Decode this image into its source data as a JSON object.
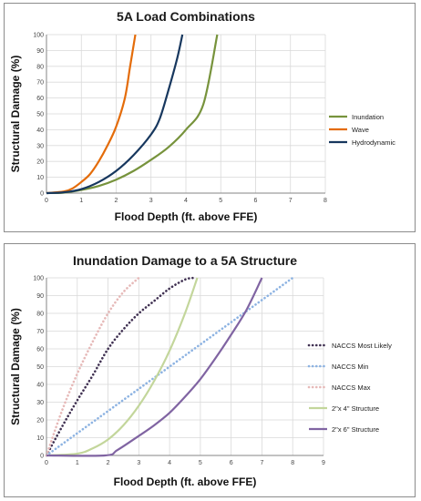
{
  "chart_data": [
    {
      "type": "line",
      "title": "5A Load Combinations",
      "xlabel": "Flood Depth (ft. above FFE)",
      "ylabel": "Structural Damage (%)",
      "xlim": [
        0,
        8
      ],
      "ylim": [
        0,
        100
      ],
      "xticks": [
        "0",
        "1",
        "2",
        "3",
        "4",
        "5",
        "6",
        "7",
        "8"
      ],
      "yticks": [
        "0",
        "10",
        "20",
        "30",
        "40",
        "50",
        "60",
        "70",
        "80",
        "90",
        "100"
      ],
      "grid": true,
      "legend_position": "right",
      "series": [
        {
          "name": "Inundation",
          "color": "#77933c",
          "style": "solid",
          "points": [
            [
              0,
              0
            ],
            [
              0.5,
              0.3
            ],
            [
              1,
              2
            ],
            [
              1.5,
              4.5
            ],
            [
              2,
              8.5
            ],
            [
              2.5,
              14
            ],
            [
              3,
              21
            ],
            [
              3.5,
              29
            ],
            [
              4,
              40
            ],
            [
              4.5,
              56
            ],
            [
              4.9,
              100
            ]
          ]
        },
        {
          "name": "Wave",
          "color": "#e46c0a",
          "style": "solid",
          "points": [
            [
              0,
              0
            ],
            [
              0.5,
              1
            ],
            [
              0.75,
              3
            ],
            [
              1,
              7
            ],
            [
              1.25,
              12
            ],
            [
              1.5,
              20
            ],
            [
              1.75,
              30
            ],
            [
              2,
              42
            ],
            [
              2.25,
              60
            ],
            [
              2.4,
              80
            ],
            [
              2.55,
              100
            ]
          ]
        },
        {
          "name": "Hydrodynamic",
          "color": "#17375e",
          "style": "solid",
          "points": [
            [
              0,
              0
            ],
            [
              0.5,
              0.5
            ],
            [
              1,
              2.5
            ],
            [
              1.5,
              7
            ],
            [
              2,
              14
            ],
            [
              2.5,
              24
            ],
            [
              3,
              37
            ],
            [
              3.25,
              47
            ],
            [
              3.5,
              65
            ],
            [
              3.75,
              85
            ],
            [
              3.9,
              100
            ]
          ]
        }
      ]
    },
    {
      "type": "line",
      "title": "Inundation Damage to a 5A Structure",
      "xlabel": "Flood Depth (ft. above FFE)",
      "ylabel": "Structural Damage (%)",
      "xlim": [
        0,
        9
      ],
      "ylim": [
        0,
        100
      ],
      "xticks": [
        "0",
        "1",
        "2",
        "3",
        "4",
        "5",
        "6",
        "7",
        "8",
        "9"
      ],
      "yticks": [
        "0",
        "10",
        "20",
        "30",
        "40",
        "50",
        "60",
        "70",
        "80",
        "90",
        "100"
      ],
      "grid": true,
      "legend_position": "right",
      "series": [
        {
          "name": "NACCS Most Likely",
          "color": "#403152",
          "style": "dotted",
          "points": [
            [
              0,
              0
            ],
            [
              0.5,
              16
            ],
            [
              1,
              31
            ],
            [
              1.5,
              45
            ],
            [
              2,
              60
            ],
            [
              2.5,
              71
            ],
            [
              3,
              80
            ],
            [
              3.5,
              87
            ],
            [
              4,
              94
            ],
            [
              4.5,
              99
            ],
            [
              4.8,
              100
            ]
          ]
        },
        {
          "name": "NACCS Min",
          "color": "#8db3e2",
          "style": "dotted",
          "points": [
            [
              0,
              0
            ],
            [
              8,
              100
            ]
          ]
        },
        {
          "name": "NACCS Max",
          "color": "#e6b9b8",
          "style": "dotted",
          "points": [
            [
              0,
              0
            ],
            [
              0.5,
              25
            ],
            [
              1,
              46
            ],
            [
              1.5,
              64
            ],
            [
              2,
              80
            ],
            [
              2.5,
              92
            ],
            [
              3,
              100
            ]
          ]
        },
        {
          "name": "2\"x 4\" Structure",
          "color": "#c3d69b",
          "style": "solid",
          "points": [
            [
              0,
              0
            ],
            [
              1,
              1
            ],
            [
              1.5,
              4
            ],
            [
              2,
              9
            ],
            [
              2.5,
              17
            ],
            [
              3,
              28
            ],
            [
              3.5,
              42
            ],
            [
              4,
              59
            ],
            [
              4.5,
              80
            ],
            [
              4.9,
              100
            ]
          ]
        },
        {
          "name": "2\"x 6\" Structure",
          "color": "#8064a2",
          "style": "solid",
          "points": [
            [
              0,
              0
            ],
            [
              1.9,
              0
            ],
            [
              2.3,
              3
            ],
            [
              3,
              11
            ],
            [
              3.5,
              17
            ],
            [
              4,
              24
            ],
            [
              4.5,
              33
            ],
            [
              5,
              43
            ],
            [
              5.5,
              55
            ],
            [
              6,
              68
            ],
            [
              6.5,
              82
            ],
            [
              7,
              100
            ]
          ]
        }
      ]
    }
  ]
}
